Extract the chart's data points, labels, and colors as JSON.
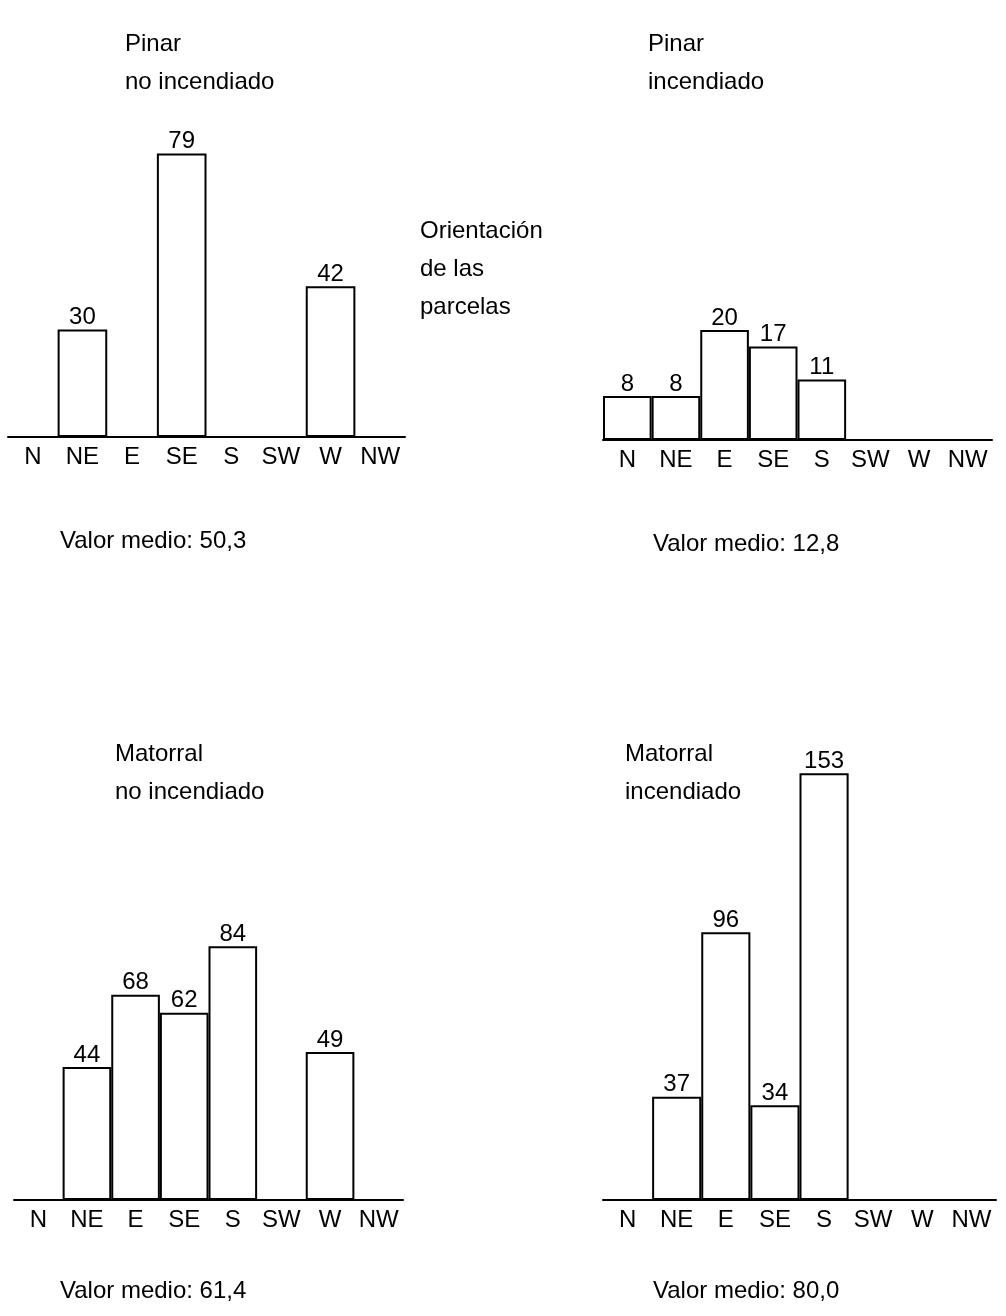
{
  "chart_data": [
    {
      "type": "bar",
      "title": "Pinar\nno incendiado",
      "categories": [
        "N",
        "NE",
        "E",
        "SE",
        "S",
        "SW",
        "W",
        "NW"
      ],
      "series": [
        {
          "color": "#ffffff",
          "values": [
            null,
            30,
            null,
            79,
            null,
            null,
            42,
            null
          ]
        }
      ],
      "data_labels": true,
      "grid": false,
      "annotations": [
        "Valor medio: 50,3",
        "Orientación\nde las\nparcelas"
      ]
    },
    {
      "type": "bar",
      "title": "Pinar\nincendiado",
      "categories": [
        "N",
        "NE",
        "E",
        "SE",
        "S",
        "SW",
        "W",
        "NW"
      ],
      "series": [
        {
          "color": "#ffffff",
          "values": [
            8,
            8,
            20,
            17,
            11,
            null,
            null,
            null
          ]
        }
      ],
      "data_labels": true,
      "grid": false,
      "annotations": [
        "Valor medio: 12,8"
      ]
    },
    {
      "type": "bar",
      "title": "Matorral\nno incendiado",
      "categories": [
        "N",
        "NE",
        "E",
        "SE",
        "S",
        "SW",
        "W",
        "NW"
      ],
      "series": [
        {
          "color": "#ffffff",
          "values": [
            null,
            44,
            68,
            62,
            84,
            null,
            49,
            null
          ]
        }
      ],
      "data_labels": true,
      "grid": false,
      "annotations": [
        "Valor medio: 61,4"
      ]
    },
    {
      "type": "bar",
      "title": "Matorral\nincendiado",
      "categories": [
        "N",
        "NE",
        "E",
        "SE",
        "S",
        "SW",
        "W",
        "NW"
      ],
      "series": [
        {
          "color": "#ffffff",
          "values": [
            null,
            37,
            96,
            34,
            153,
            null,
            null,
            null
          ]
        }
      ],
      "data_labels": true,
      "grid": false,
      "annotations": [
        "Valor medio: 80,0"
      ]
    }
  ]
}
